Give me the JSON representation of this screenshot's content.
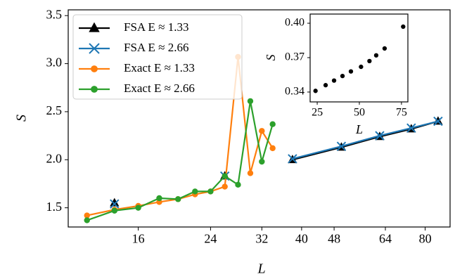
{
  "chart_data": [
    {
      "type": "line",
      "xscale": "log",
      "xlabel": "L",
      "ylabel": "S",
      "legend": "upper left",
      "x": [
        12,
        14,
        16,
        18,
        20,
        22,
        24,
        26,
        28,
        30,
        32,
        34,
        38,
        50,
        62,
        74,
        86
      ],
      "series": [
        {
          "name": "FSA E ≈ 1.33",
          "color": "#000000",
          "marker": "^",
          "values": [
            null,
            1.55,
            null,
            null,
            null,
            null,
            null,
            1.83,
            null,
            null,
            null,
            null,
            2.0,
            2.13,
            2.24,
            2.32,
            2.4
          ]
        },
        {
          "name": "FSA E ≈ 2.66",
          "color": "#1f77b4",
          "marker": "x",
          "values": [
            null,
            1.54,
            null,
            null,
            null,
            null,
            null,
            1.83,
            null,
            null,
            null,
            null,
            2.01,
            2.14,
            2.25,
            2.33,
            2.4
          ]
        },
        {
          "name": "Exact E ≈ 1.33",
          "color": "#ff7f0e",
          "marker": "o",
          "values": [
            1.42,
            1.48,
            1.52,
            1.56,
            1.59,
            1.64,
            1.67,
            1.72,
            3.07,
            1.86,
            2.3,
            2.12,
            null,
            null,
            null,
            null,
            null
          ]
        },
        {
          "name": "Exact E ≈ 2.66",
          "color": "#2ca02c",
          "marker": "o",
          "values": [
            1.37,
            1.47,
            1.5,
            1.6,
            1.59,
            1.67,
            1.67,
            1.83,
            1.74,
            2.61,
            1.98,
            2.37,
            null,
            null,
            null,
            null,
            null
          ]
        }
      ],
      "xlim": [
        10.8,
        92
      ],
      "ylim": [
        1.3,
        3.56
      ],
      "xticks": [
        16,
        24,
        32,
        40,
        48,
        64,
        80
      ],
      "yticks": [
        1.5,
        {
          "value": 2,
          "label": "2.0"
        },
        2.5,
        {
          "value": 3,
          "label": "3.0"
        },
        3.5
      ]
    },
    {
      "type": "scatter",
      "xlabel": "L",
      "ylabel": "S",
      "x": [
        24,
        30,
        35,
        40,
        45,
        51,
        56,
        60,
        65,
        76
      ],
      "series": [
        {
          "color": "#000000",
          "marker": "o",
          "values": [
            0.341,
            0.346,
            0.35,
            0.354,
            0.358,
            0.362,
            0.367,
            0.372,
            0.378,
            0.397
          ]
        }
      ],
      "xlim": [
        20.8,
        78.8
      ],
      "ylim": [
        0.3314,
        0.408
      ],
      "xticks": [
        25,
        50,
        75
      ],
      "yticks": [
        0.34,
        0.37,
        {
          "value": 0.4,
          "label": "0.40"
        }
      ]
    }
  ]
}
